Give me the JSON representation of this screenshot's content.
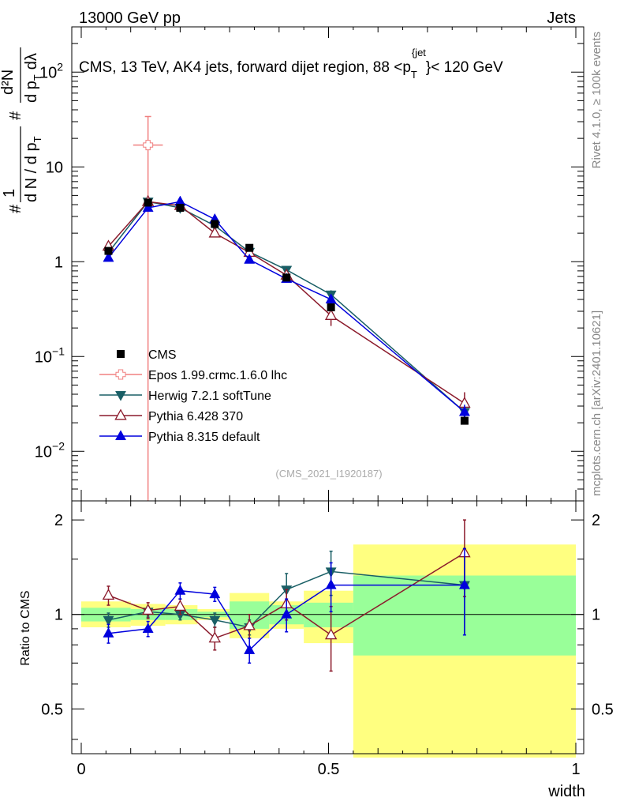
{
  "header": {
    "left": "13000 GeV pp",
    "right": "Jets"
  },
  "side_labels": {
    "rivet": "Rivet 4.1.0, ≥ 100k events",
    "mcplots": "mcplots.cern.ch [arXiv:2401.10621]"
  },
  "watermark": "(CMS_2021_I1920187)",
  "chart_data": {
    "type": "line",
    "title": "CMS, 13 TeV, AK4 jets, forward dijet region, 88 < p_T^{jet} < 120 GeV",
    "title_parts": {
      "main": "CMS, 13 TeV, AK4 jets, forward dijet region, 88 <p",
      "sub": "T",
      "sup": "{jet",
      "tail": "}< 120 GeV"
    },
    "xlabel": "width",
    "ylabel_top": "1/(dN/dp_T) d²N/(dp_T dλ)",
    "ylabel_parts": {
      "frac_num": "1",
      "frac_den": "d N / d p",
      "frac_den_sub": "T",
      "d2N": "d²N",
      "dpdl": "d p",
      "dpdl_sub": "T",
      "dl": "dλ",
      "hash": "#"
    },
    "ylabel_bottom": "Ratio to CMS",
    "xlim": [
      0,
      1
    ],
    "ylim_top": [
      0.003,
      300
    ],
    "ylim_bottom": [
      0.36,
      2.3
    ],
    "x_ticks": [
      "0",
      "0.5",
      "1"
    ],
    "y_ticks_top": [
      {
        "value": 0.01,
        "base": "10",
        "exp": "−2"
      },
      {
        "value": 0.1,
        "base": "10",
        "exp": "−1"
      },
      {
        "value": 1,
        "base": "1",
        "exp": ""
      },
      {
        "value": 10,
        "base": "10",
        "exp": ""
      },
      {
        "value": 100,
        "base": "10",
        "exp": "2"
      }
    ],
    "y_ticks_bottom": [
      "0.5",
      "1",
      "2"
    ],
    "bin_edges": [
      0,
      0.1,
      0.17,
      0.235,
      0.3,
      0.38,
      0.45,
      0.55,
      1.0
    ],
    "data": {
      "name": "CMS",
      "color": "#000000",
      "x": [
        0.055,
        0.135,
        0.2,
        0.27,
        0.34,
        0.415,
        0.505,
        0.775
      ],
      "y": [
        1.3,
        4.2,
        3.7,
        2.5,
        1.4,
        0.68,
        0.33,
        0.021
      ],
      "band_green": [
        [
          0.95,
          1.05
        ],
        [
          0.96,
          1.04
        ],
        [
          0.96,
          1.04
        ],
        [
          0.98,
          1.02
        ],
        [
          0.9,
          1.1
        ],
        [
          0.93,
          1.07
        ],
        [
          0.91,
          1.09
        ],
        [
          0.74,
          1.33
        ]
      ],
      "band_yellow": [
        [
          0.91,
          1.1
        ],
        [
          0.92,
          1.08
        ],
        [
          0.93,
          1.07
        ],
        [
          0.96,
          1.04
        ],
        [
          0.84,
          1.17
        ],
        [
          0.9,
          1.1
        ],
        [
          0.81,
          1.19
        ],
        [
          0.35,
          1.67
        ]
      ]
    },
    "series": [
      {
        "name": "Epos 1.99.crmc.1.6.0 lhc",
        "color": "#f08080",
        "marker": "open-cross",
        "x": [
          0.135
        ],
        "y": [
          17.0
        ],
        "err_lo": [
          16.999
        ],
        "err_hi": [
          17.0
        ],
        "xerr": [
          0.03
        ],
        "ratio": [],
        "ratio_err": []
      },
      {
        "name": "Herwig 7.2.1 softTune",
        "color": "#1a5f66",
        "marker": "triangle-down",
        "x": [
          0.055,
          0.135,
          0.2,
          0.27,
          0.34,
          0.415,
          0.505,
          0.775
        ],
        "y": [
          1.25,
          4.3,
          3.7,
          2.4,
          1.27,
          0.82,
          0.45,
          0.026
        ],
        "err_lo": [
          0.05,
          0.15,
          0.1,
          0.1,
          0.06,
          0.06,
          0.05,
          0.005
        ],
        "err_hi": [
          0.05,
          0.15,
          0.1,
          0.1,
          0.06,
          0.06,
          0.05,
          0.005
        ],
        "ratio": [
          0.96,
          1.02,
          1.0,
          0.96,
          0.91,
          1.2,
          1.37,
          1.24
        ],
        "ratio_err": [
          0.05,
          0.04,
          0.04,
          0.05,
          0.05,
          0.15,
          0.22,
          0.38
        ]
      },
      {
        "name": "Pythia 6.428 370",
        "color": "#8b1a2b",
        "marker": "open-triangle-up",
        "x": [
          0.055,
          0.135,
          0.2,
          0.27,
          0.34,
          0.415,
          0.505,
          0.775
        ],
        "y": [
          1.45,
          4.3,
          3.9,
          2.0,
          1.25,
          0.72,
          0.27,
          0.032
        ],
        "err_lo": [
          0.06,
          0.15,
          0.12,
          0.15,
          0.08,
          0.07,
          0.06,
          0.01
        ],
        "err_hi": [
          0.06,
          0.15,
          0.12,
          0.15,
          0.08,
          0.07,
          0.06,
          0.01
        ],
        "ratio": [
          1.15,
          1.03,
          1.06,
          0.84,
          0.92,
          1.08,
          0.86,
          1.57
        ],
        "ratio_err": [
          0.08,
          0.06,
          0.06,
          0.07,
          0.08,
          0.12,
          0.2,
          0.43
        ]
      },
      {
        "name": "Pythia 8.315 default",
        "color": "#0000dd",
        "marker": "triangle-up",
        "x": [
          0.055,
          0.135,
          0.2,
          0.27,
          0.34,
          0.415,
          0.505,
          0.775
        ],
        "y": [
          1.1,
          3.7,
          4.3,
          2.8,
          1.05,
          0.66,
          0.4,
          0.026
        ],
        "err_lo": [
          0.05,
          0.15,
          0.15,
          0.1,
          0.06,
          0.06,
          0.05,
          0.005
        ],
        "err_hi": [
          0.05,
          0.15,
          0.15,
          0.1,
          0.06,
          0.06,
          0.05,
          0.005
        ],
        "ratio": [
          0.87,
          0.9,
          1.19,
          1.16,
          0.77,
          1.0,
          1.24,
          1.24
        ],
        "ratio_err": [
          0.06,
          0.05,
          0.07,
          0.06,
          0.07,
          0.12,
          0.22,
          0.38
        ]
      }
    ],
    "legend_position": "middle-left"
  }
}
